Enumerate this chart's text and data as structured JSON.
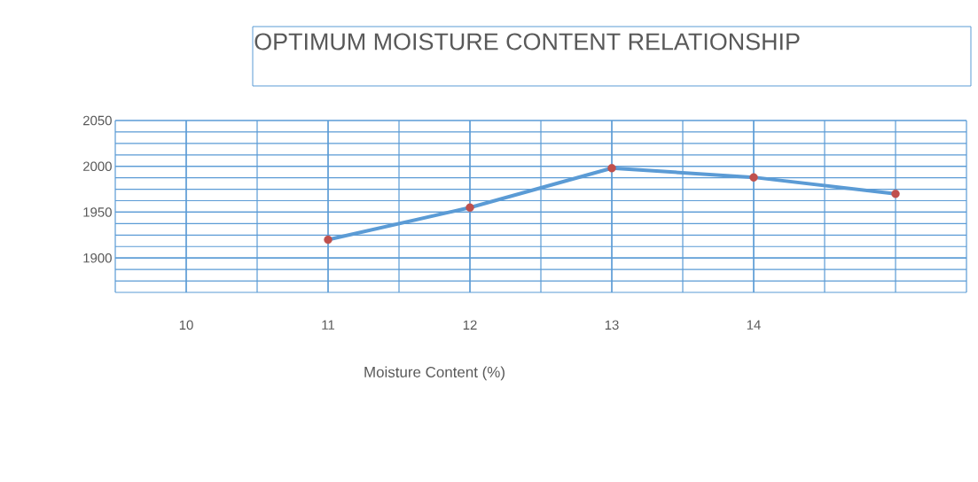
{
  "chart_data": {
    "type": "line",
    "title": "OPTIMUM MOISTURE CONTENT RELATIONSHIP",
    "xlabel": "Moisture Content (%)",
    "x": [
      11,
      12,
      13,
      14,
      15
    ],
    "series": [
      {
        "color": "#5b9bd5",
        "colors": [
          "#c0504d",
          "#c0504d",
          "#c0504d",
          "#c0504d",
          "#c0504d"
        ],
        "values": [
          1920,
          1955,
          1998,
          1988,
          1970
        ]
      }
    ],
    "xlim": [
      9.5,
      15.5
    ],
    "xticks": [
      10,
      11,
      12,
      13,
      14
    ],
    "ylim": [
      1862.5,
      2050
    ],
    "yticks": [
      1900,
      1950,
      2000,
      2050
    ],
    "grid": true,
    "marker": "circle",
    "line_style": "solid"
  }
}
